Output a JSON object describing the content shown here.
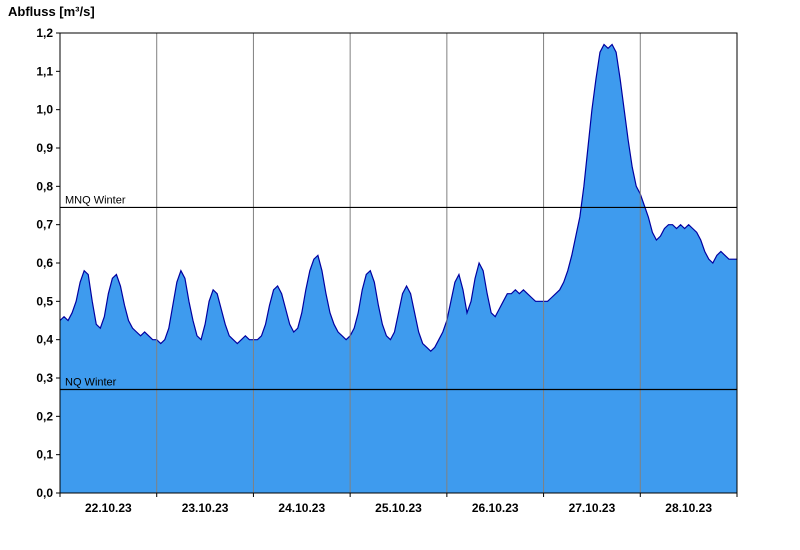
{
  "title": "Abfluss [m³/s]",
  "chart_data": {
    "type": "area",
    "title": "Abfluss [m³/s]",
    "ylabel": "Abfluss [m³/s]",
    "xlabel": "",
    "ylim": [
      0,
      1.2
    ],
    "y_ticks": [
      0.0,
      0.1,
      0.2,
      0.3,
      0.4,
      0.5,
      0.6,
      0.7,
      0.8,
      0.9,
      1.0,
      1.1,
      1.2
    ],
    "y_tick_labels": [
      "0,0",
      "0,1",
      "0,2",
      "0,3",
      "0,4",
      "0,5",
      "0,6",
      "0,7",
      "0,8",
      "0,9",
      "1,0",
      "1,1",
      "1,2"
    ],
    "x_unit": "hours",
    "x_range": [
      0,
      168
    ],
    "day_labels": [
      "22.10.23",
      "23.10.23",
      "24.10.23",
      "25.10.23",
      "26.10.23",
      "27.10.23",
      "28.10.23"
    ],
    "day_boundaries_hours": [
      24,
      48,
      72,
      96,
      120,
      144
    ],
    "reference_lines": [
      {
        "label": "MNQ Winter",
        "value": 0.745
      },
      {
        "label": "NQ Winter",
        "value": 0.27
      }
    ],
    "legend_position": "none",
    "grid": "vertical-day-lines",
    "colors": {
      "fill": "#3E9BEE",
      "line": "#0000A0",
      "grid": "#808080",
      "axis": "#000000",
      "refline": "#000000"
    },
    "series": [
      {
        "name": "Abfluss",
        "x_step_hours": 1,
        "values": [
          0.45,
          0.46,
          0.45,
          0.47,
          0.5,
          0.55,
          0.58,
          0.57,
          0.5,
          0.44,
          0.43,
          0.46,
          0.52,
          0.56,
          0.57,
          0.54,
          0.49,
          0.45,
          0.43,
          0.42,
          0.41,
          0.42,
          0.41,
          0.4,
          0.4,
          0.39,
          0.4,
          0.43,
          0.49,
          0.55,
          0.58,
          0.56,
          0.5,
          0.45,
          0.41,
          0.4,
          0.44,
          0.5,
          0.53,
          0.52,
          0.48,
          0.44,
          0.41,
          0.4,
          0.39,
          0.4,
          0.41,
          0.4,
          0.4,
          0.4,
          0.41,
          0.44,
          0.49,
          0.53,
          0.54,
          0.52,
          0.48,
          0.44,
          0.42,
          0.43,
          0.47,
          0.53,
          0.58,
          0.61,
          0.62,
          0.58,
          0.52,
          0.47,
          0.44,
          0.42,
          0.41,
          0.4,
          0.41,
          0.43,
          0.47,
          0.53,
          0.57,
          0.58,
          0.55,
          0.49,
          0.44,
          0.41,
          0.4,
          0.42,
          0.47,
          0.52,
          0.54,
          0.52,
          0.47,
          0.42,
          0.39,
          0.38,
          0.37,
          0.38,
          0.4,
          0.42,
          0.45,
          0.5,
          0.55,
          0.57,
          0.53,
          0.47,
          0.5,
          0.56,
          0.6,
          0.58,
          0.52,
          0.47,
          0.46,
          0.48,
          0.5,
          0.52,
          0.52,
          0.53,
          0.52,
          0.53,
          0.52,
          0.51,
          0.5,
          0.5,
          0.5,
          0.5,
          0.51,
          0.52,
          0.53,
          0.55,
          0.58,
          0.62,
          0.67,
          0.72,
          0.8,
          0.9,
          1.0,
          1.08,
          1.15,
          1.17,
          1.16,
          1.17,
          1.15,
          1.08,
          1.0,
          0.92,
          0.85,
          0.8,
          0.78,
          0.75,
          0.72,
          0.68,
          0.66,
          0.67,
          0.69,
          0.7,
          0.7,
          0.69,
          0.7,
          0.69,
          0.7,
          0.69,
          0.68,
          0.66,
          0.63,
          0.61,
          0.6,
          0.62,
          0.63,
          0.62,
          0.61,
          0.61,
          0.61
        ]
      }
    ]
  }
}
